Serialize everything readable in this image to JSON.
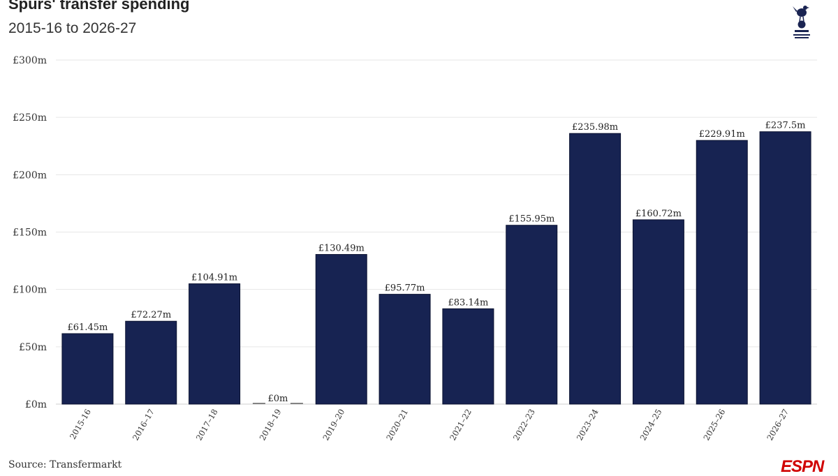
{
  "title": "Spurs' transfer spending",
  "subtitle": "2015-16 to 2026-27",
  "source": "Source: Transfermarkt",
  "brand_logo": "ESPN",
  "club_crest_icon": "cockerel-crest-icon",
  "colors": {
    "bar": "#172352",
    "bar_stroke": "#0b1230",
    "grid": "#e6e6e6",
    "brand": "#d00000"
  },
  "chart_data": {
    "type": "bar",
    "title": "Spurs' transfer spending",
    "subtitle": "2015-16 to 2026-27",
    "xlabel": "",
    "ylabel": "",
    "ylim": [
      0,
      300
    ],
    "y_ticks": [
      0,
      50,
      100,
      150,
      200,
      250,
      300
    ],
    "y_tick_labels": [
      "£0m",
      "£50m",
      "£100m",
      "£150m",
      "£200m",
      "£250m",
      "£300m"
    ],
    "grid": true,
    "categories": [
      "2015-16",
      "2016–17",
      "2017–18",
      "2018–19",
      "2019–20",
      "2020–21",
      "2021–22",
      "2022–23",
      "2023–24",
      "2024–25",
      "2025–26",
      "2026–27"
    ],
    "values": [
      61.45,
      72.27,
      104.91,
      0,
      130.49,
      95.77,
      83.14,
      155.95,
      235.98,
      160.72,
      229.91,
      237.5
    ],
    "data_labels": [
      "£61.45m",
      "£72.27m",
      "£104.91m",
      "£0m",
      "£130.49m",
      "£95.77m",
      "£83.14m",
      "£155.95m",
      "£235.98m",
      "£160.72m",
      "£229.91m",
      "£237.5m"
    ],
    "source": "Source: Transfermarkt"
  }
}
